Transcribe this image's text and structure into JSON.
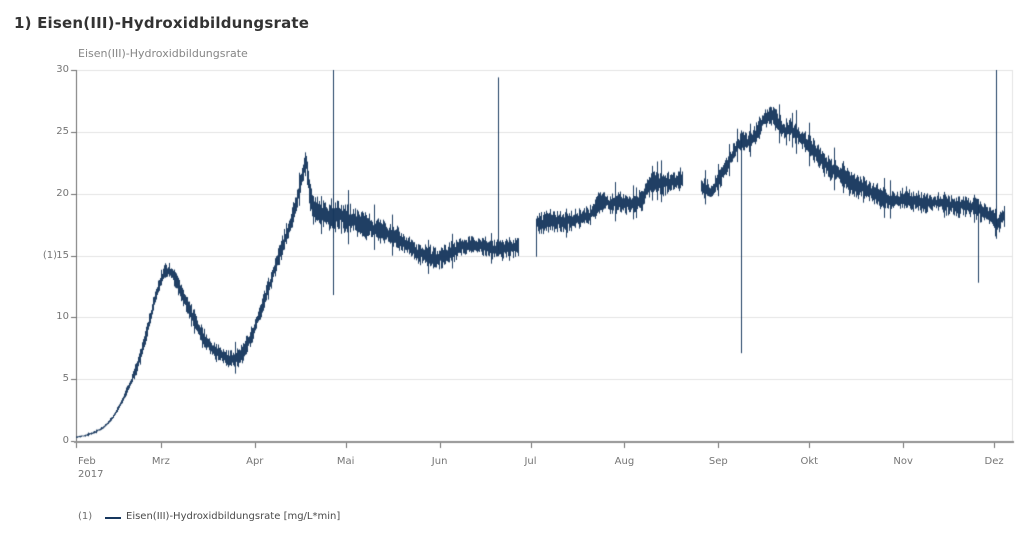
{
  "page": {
    "title": "1) Eisen(III)-Hydroxidbildungsrate"
  },
  "style": {
    "series_color": "#17375e",
    "grid_color": "#e3e3e3",
    "axis_line_color": "#919191",
    "tick_mark_color": "#6e6e6e",
    "tick_text_color": "#757575",
    "title_color": "#333333",
    "subtitle_color": "#868686",
    "background": "#ffffff"
  },
  "chart_data": {
    "type": "line",
    "title": "Eisen(III)-Hydroxidbildungsrate",
    "xlabel": "",
    "ylabel": "(1)",
    "ylim": [
      0,
      30
    ],
    "y_ticks": [
      0,
      5,
      10,
      15,
      20,
      25,
      30
    ],
    "y_axis_series_label": "(1)",
    "grid": true,
    "x_axis_unit": "months (2017)",
    "x_range_days": [
      0,
      306.3
    ],
    "x_ticks": [
      {
        "label": "Feb",
        "sub": "2017",
        "day": 0,
        "align": "left"
      },
      {
        "label": "Mrz",
        "day": 28
      },
      {
        "label": "Apr",
        "day": 59
      },
      {
        "label": "Mai",
        "day": 89
      },
      {
        "label": "Jun",
        "day": 120
      },
      {
        "label": "Jul",
        "day": 150
      },
      {
        "label": "Aug",
        "day": 181
      },
      {
        "label": "Sep",
        "day": 212
      },
      {
        "label": "Okt",
        "day": 242
      },
      {
        "label": "Nov",
        "day": 273
      },
      {
        "label": "Dez",
        "day": 303
      }
    ],
    "legend": {
      "index": "(1)",
      "label": "Eisen(III)-Hydroxidbildungsrate [mg/L*min]",
      "position": "bottom-left"
    },
    "series": [
      {
        "name": "Eisen(III)-Hydroxidbildungsrate",
        "unit": "mg/L*min",
        "color": "#17375e",
        "trend_day_value": [
          [
            0,
            0.3
          ],
          [
            3,
            0.45
          ],
          [
            6,
            0.7
          ],
          [
            9,
            1.1
          ],
          [
            12,
            1.9
          ],
          [
            15,
            3.2
          ],
          [
            18,
            4.8
          ],
          [
            20,
            6.0
          ],
          [
            22,
            7.6
          ],
          [
            24,
            9.6
          ],
          [
            26,
            11.6
          ],
          [
            28,
            13.2
          ],
          [
            29.5,
            13.75
          ],
          [
            31,
            13.7
          ],
          [
            33,
            12.9
          ],
          [
            36,
            11.3
          ],
          [
            39,
            9.7
          ],
          [
            42,
            8.3
          ],
          [
            45,
            7.4
          ],
          [
            48,
            6.85
          ],
          [
            51,
            6.6
          ],
          [
            53,
            6.7
          ],
          [
            55,
            7.15
          ],
          [
            57,
            8.0
          ],
          [
            59,
            9.2
          ],
          [
            61,
            10.6
          ],
          [
            63,
            12.2
          ],
          [
            65,
            13.6
          ],
          [
            67,
            15.0
          ],
          [
            69,
            16.4
          ],
          [
            71,
            17.8
          ],
          [
            72.5,
            19.2
          ],
          [
            74,
            20.8
          ],
          [
            75.3,
            22.3
          ],
          [
            75.9,
            22.5
          ],
          [
            76.4,
            21.3
          ],
          [
            77.2,
            19.7
          ],
          [
            78,
            18.9
          ],
          [
            80,
            18.5
          ],
          [
            83,
            18.3
          ],
          [
            86,
            18.2
          ],
          [
            89,
            18.0
          ],
          [
            92,
            17.8
          ],
          [
            95,
            17.5
          ],
          [
            98,
            17.2
          ],
          [
            101,
            16.9
          ],
          [
            104,
            16.6
          ],
          [
            107,
            16.2
          ],
          [
            110,
            15.7
          ],
          [
            113,
            15.2
          ],
          [
            116,
            14.9
          ],
          [
            118.5,
            14.7
          ],
          [
            121,
            14.9
          ],
          [
            124,
            15.3
          ],
          [
            127,
            15.7
          ],
          [
            130,
            15.9
          ],
          [
            133,
            15.8
          ],
          [
            136,
            15.6
          ],
          [
            139,
            15.5
          ],
          [
            142,
            15.6
          ],
          [
            146,
            15.7
          ],
          [
            151.7,
            17.6
          ],
          [
            155,
            17.7
          ],
          [
            158,
            17.8
          ],
          [
            161,
            17.6
          ],
          [
            164,
            17.9
          ],
          [
            167,
            18.1
          ],
          [
            170,
            18.3
          ],
          [
            171.5,
            19.0
          ],
          [
            173,
            19.4
          ],
          [
            175,
            19.4
          ],
          [
            176.5,
            19.1
          ],
          [
            179,
            19.3
          ],
          [
            182,
            19.2
          ],
          [
            185,
            19.3
          ],
          [
            187,
            19.6
          ],
          [
            188.5,
            20.5
          ],
          [
            191,
            21.0
          ],
          [
            194,
            20.8
          ],
          [
            197,
            21.0
          ],
          [
            200,
            21.2
          ],
          [
            206,
            20.7
          ],
          [
            208,
            20.4
          ],
          [
            209.5,
            20.1
          ],
          [
            211,
            20.7
          ],
          [
            213,
            21.5
          ],
          [
            215,
            22.4
          ],
          [
            217,
            23.4
          ],
          [
            219,
            24.2
          ],
          [
            221,
            24.2
          ],
          [
            223,
            24.4
          ],
          [
            225,
            25.0
          ],
          [
            226.5,
            25.8
          ],
          [
            228,
            26.2
          ],
          [
            229.5,
            26.3
          ],
          [
            231,
            26.0
          ],
          [
            232.5,
            25.4
          ],
          [
            234,
            25.1
          ],
          [
            235.5,
            25.3
          ],
          [
            237,
            25.0
          ],
          [
            238.5,
            24.6
          ],
          [
            240,
            24.3
          ],
          [
            242,
            23.8
          ],
          [
            244,
            23.3
          ],
          [
            246,
            22.7
          ],
          [
            248,
            22.1
          ],
          [
            250,
            21.9
          ],
          [
            252,
            21.7
          ],
          [
            254,
            21.2
          ],
          [
            256,
            20.8
          ],
          [
            258,
            20.6
          ],
          [
            260,
            20.5
          ],
          [
            262,
            20.2
          ],
          [
            264,
            19.9
          ],
          [
            266,
            19.6
          ],
          [
            268,
            19.5
          ],
          [
            270,
            19.4
          ],
          [
            272,
            19.5
          ],
          [
            274,
            19.6
          ],
          [
            276,
            19.4
          ],
          [
            279,
            19.3
          ],
          [
            282,
            19.2
          ],
          [
            285,
            19.3
          ],
          [
            288,
            19.1
          ],
          [
            291,
            19.0
          ],
          [
            294,
            19.0
          ],
          [
            296,
            18.9
          ],
          [
            297.7,
            18.8
          ],
          [
            299,
            18.5
          ],
          [
            300.5,
            18.4
          ],
          [
            302,
            18.1
          ],
          [
            303.3,
            17.7
          ],
          [
            304.2,
            17.5
          ],
          [
            305.2,
            17.9
          ],
          [
            306.3,
            18.3
          ]
        ],
        "noise_halfwidth_day_value": [
          [
            0,
            0.05
          ],
          [
            10,
            0.08
          ],
          [
            14,
            0.15
          ],
          [
            20,
            0.35
          ],
          [
            26,
            0.45
          ],
          [
            40,
            0.5
          ],
          [
            60,
            0.5
          ],
          [
            74,
            0.6
          ],
          [
            77,
            0.8
          ],
          [
            80,
            0.85
          ],
          [
            90,
            0.8
          ],
          [
            100,
            0.65
          ],
          [
            115,
            0.6
          ],
          [
            130,
            0.55
          ],
          [
            146,
            0.5
          ],
          [
            152,
            0.6
          ],
          [
            165,
            0.55
          ],
          [
            180,
            0.55
          ],
          [
            195,
            0.6
          ],
          [
            207,
            0.55
          ],
          [
            215,
            0.5
          ],
          [
            222,
            0.6
          ],
          [
            228,
            0.65
          ],
          [
            240,
            0.6
          ],
          [
            255,
            0.65
          ],
          [
            270,
            0.6
          ],
          [
            285,
            0.55
          ],
          [
            295,
            0.6
          ],
          [
            306,
            0.5
          ]
        ],
        "data_gaps_days": [
          [
            146.2,
            151.6
          ],
          [
            200.3,
            206.0
          ]
        ],
        "vertical_spikes_day_from_to": [
          [
            84.8,
            11.8,
            30.0
          ],
          [
            139.3,
            15.4,
            29.4
          ],
          [
            151.8,
            14.9,
            17.9
          ],
          [
            219.5,
            7.1,
            24.4
          ],
          [
            297.7,
            12.8,
            19.0
          ],
          [
            303.5,
            17.4,
            30.0
          ]
        ]
      }
    ]
  }
}
